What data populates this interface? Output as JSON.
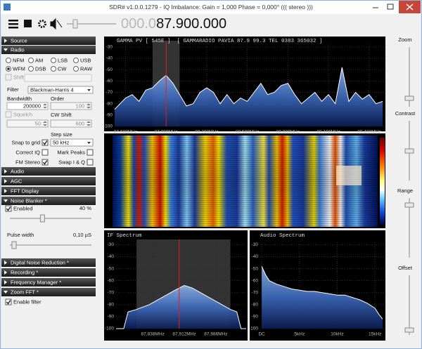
{
  "window": {
    "title": "SDR# v1.0.0.1279 - IQ Imbalance: Gain = 1,000 Phase = 0,000° ((( stereo )))"
  },
  "toolbar": {
    "frequency_dim": "000.0",
    "frequency": "87.900.000"
  },
  "sidebar": {
    "headers_top": [
      {
        "label": "Source",
        "expanded": false
      },
      {
        "label": "Radio",
        "expanded": true
      }
    ],
    "radio": {
      "modes": [
        {
          "label": "NFM",
          "selected": false
        },
        {
          "label": "AM",
          "selected": false
        },
        {
          "label": "LSB",
          "selected": false
        },
        {
          "label": "USB",
          "selected": false
        },
        {
          "label": "WFM",
          "selected": true
        },
        {
          "label": "DSB",
          "selected": false
        },
        {
          "label": "CW",
          "selected": false
        },
        {
          "label": "RAW",
          "selected": false
        }
      ],
      "shift": {
        "label": "Shift",
        "checked": false
      },
      "filter_label": "Filter",
      "filter": "Blackman-Harris 4",
      "bandwidth_label": "Bandwidth",
      "bandwidth": 200000,
      "order_label": "Order",
      "order": 100,
      "squelch": {
        "label": "Squelch",
        "checked": false
      },
      "cw_shift_label": "CW Shift",
      "squelch_value": 50,
      "cw_shift": 600,
      "snap": {
        "label": "Snap to grid",
        "checked": true
      },
      "step_label": "Step size",
      "step": "50 kHz",
      "correct_iq": {
        "label": "Correct IQ",
        "checked": false
      },
      "mark_peaks": {
        "label": "Mark Peaks",
        "checked": false
      },
      "fm_stereo": {
        "label": "FM Stereo",
        "checked": true
      },
      "swap_iq": {
        "label": "Swap I & Q",
        "checked": false
      }
    },
    "headers_mid": [
      {
        "label": "Audio",
        "expanded": false
      },
      {
        "label": "AGC",
        "expanded": false
      },
      {
        "label": "FFT Display",
        "expanded": false
      },
      {
        "label": "Noise Blanker *",
        "expanded": true
      }
    ],
    "noise_blanker": {
      "enabled": {
        "label": "Enabled",
        "checked": true
      },
      "threshold": {
        "value": 40,
        "label": "40 %"
      },
      "pulse_label": "Pulse width",
      "pulse": "0,10 µS"
    },
    "headers_bottom": [
      {
        "label": "Digital Noise Reduction *",
        "expanded": false
      },
      {
        "label": "Recording *",
        "expanded": false
      },
      {
        "label": "Frequency Manager *",
        "expanded": false
      },
      {
        "label": "Zoom FFT *",
        "expanded": true
      }
    ],
    "zoom_fft": {
      "enable_filter": {
        "label": "Enable filter",
        "checked": true
      }
    }
  },
  "right_panel": {
    "zoom": "Zoom",
    "contrast": "Contrast",
    "range": "Range",
    "offset": "Offset"
  },
  "chart_data": [
    {
      "type": "area",
      "title": "GAMMA PV [ 545E ]  [ GAMMARADIO PAVIA 87.9 99.3 TEL 0383 365032 ]",
      "x": [
        87.52,
        87.6,
        87.65,
        87.7,
        87.75,
        87.8,
        87.85,
        87.9,
        87.95,
        88.0,
        88.05,
        88.1,
        88.15,
        88.2,
        88.25,
        88.3,
        88.35,
        88.4,
        88.45,
        88.5,
        88.55,
        88.6,
        88.65,
        88.7,
        88.75,
        88.8,
        88.85,
        88.9,
        88.95,
        89.0,
        89.05,
        89.1,
        89.15,
        89.2,
        89.25,
        89.3,
        89.35,
        89.4,
        89.45,
        89.5
      ],
      "values": [
        -85,
        -75,
        -72,
        -78,
        -68,
        -66,
        -60,
        -55,
        -62,
        -72,
        -82,
        -80,
        -70,
        -66,
        -70,
        -80,
        -72,
        -80,
        -75,
        -78,
        -70,
        -62,
        -72,
        -70,
        -64,
        -62,
        -72,
        -80,
        -75,
        -70,
        -78,
        -72,
        -80,
        -48,
        -78,
        -70,
        -76,
        -72,
        -80,
        -78
      ],
      "xlim": [
        87.52,
        89.51
      ],
      "ylim": [
        -100,
        -27
      ],
      "xticks": [
        {
          "value": 87.6,
          "label": "87,600MHz"
        },
        {
          "value": 87.9,
          "label": "87,900MHz"
        },
        {
          "value": 88.2,
          "label": "88,200MHz"
        },
        {
          "value": 88.5,
          "label": "88,500MHz"
        },
        {
          "value": 88.8,
          "label": "88,800MHz"
        },
        {
          "value": 89.1,
          "label": "89,100MHz"
        },
        {
          "value": 89.4,
          "label": "89,400MHz"
        }
      ],
      "yticks": [
        -30,
        -40,
        -50,
        -60,
        -70,
        -80,
        -90,
        -100
      ],
      "color": "#4f82d0",
      "filter_band": [
        87.8,
        88.0
      ],
      "center_line": 87.9,
      "grid": true
    },
    {
      "type": "area",
      "title": "IF Spectrum",
      "x": [
        87.752,
        87.77,
        87.78,
        87.8,
        87.83,
        87.86,
        87.89,
        87.912,
        87.93,
        87.96,
        87.99,
        88.02,
        88.035,
        88.045,
        88.057
      ],
      "values": [
        -100,
        -100,
        -86,
        -84,
        -80,
        -74,
        -68,
        -64,
        -66,
        -72,
        -78,
        -84,
        -86,
        -100,
        -100
      ],
      "xlim": [
        87.752,
        88.057
      ],
      "ylim": [
        -100,
        -28
      ],
      "xticks": [
        {
          "value": 87.838,
          "label": "87,838MHz"
        },
        {
          "value": 87.912,
          "label": "87,912MHz"
        },
        {
          "value": 87.986,
          "label": "87,986MHz"
        }
      ],
      "yticks": [
        -30,
        -40,
        -50,
        -60,
        -70,
        -80,
        -90,
        -100
      ],
      "color": "#4f82d0",
      "filter_band": [
        87.8,
        88.02
      ],
      "center_line": 87.9,
      "grid": true
    },
    {
      "type": "area",
      "title": "Audio Spectrum",
      "x": [
        0,
        0.5,
        1,
        2,
        3,
        4,
        5,
        6,
        7,
        8,
        9,
        10,
        11,
        12,
        13,
        14,
        15,
        15.5,
        16
      ],
      "values": [
        -48,
        -55,
        -60,
        -63,
        -65,
        -67,
        -68,
        -69,
        -69,
        -70,
        -71,
        -72,
        -72,
        -74,
        -76,
        -79,
        -83,
        -88,
        -92
      ],
      "xlim": [
        -0.2,
        16.1
      ],
      "ylim": [
        -100,
        -28
      ],
      "xticks": [
        {
          "value": 0,
          "label": "DC"
        },
        {
          "value": 5,
          "label": "5kHz"
        },
        {
          "value": 10,
          "label": "10kHz"
        },
        {
          "value": 15,
          "label": "15kHz"
        }
      ],
      "yticks": [
        -30,
        -40,
        -50,
        -60,
        -70,
        -80,
        -90,
        -100
      ],
      "color": "#4f82d0",
      "grid": true
    }
  ]
}
